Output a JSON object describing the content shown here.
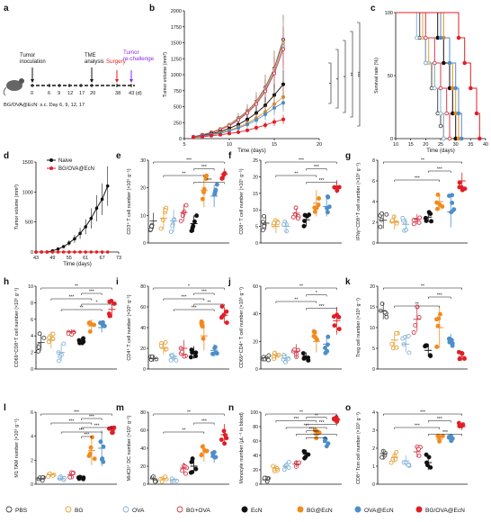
{
  "colors": {
    "PBS": "#4a4a4a",
    "BG": "#e8a33a",
    "OVA": "#86b4d8",
    "BG+OVA": "#d43a4a",
    "EcN": "#111111",
    "BG@EcN": "#f28a1e",
    "OVA@EcN": "#4d8ec9",
    "BG/OVA@EcN": "#e01f26",
    "Naive": "#111111",
    "surgery": "#e01f26",
    "rechallenge": "#8a2be2"
  },
  "legend": [
    {
      "name": "PBS",
      "fill": "open"
    },
    {
      "name": "BG",
      "fill": "open"
    },
    {
      "name": "OVA",
      "fill": "open"
    },
    {
      "name": "BG+OVA",
      "fill": "open"
    },
    {
      "name": "EcN",
      "fill": "solid"
    },
    {
      "name": "BG@EcN",
      "fill": "solid"
    },
    {
      "name": "OVA@EcN",
      "fill": "solid"
    },
    {
      "name": "BG/OVA@EcN",
      "fill": "solid"
    }
  ],
  "panel_a": {
    "letter": "a",
    "tumor_inoculation": "Tumor\ninoculation",
    "tme_analysis": "TME\nanalysis",
    "surgery": "Surgery",
    "rechallenge": "Tumor\nre-challenge",
    "ticks": [
      "0",
      "6",
      "9",
      "12",
      "17",
      "20",
      "38",
      "43 (d)"
    ],
    "dosing": "BG/OVA@EcN: s.c.  Day  6, 9, 12, 17"
  },
  "chart_data": [
    {
      "panel": "b",
      "type": "line",
      "xlabel": "Time (days)",
      "ylabel": "Tumor volume (mm³)",
      "xlim": [
        5,
        20
      ],
      "ylim": [
        0,
        2000
      ],
      "xticks": [
        5,
        10,
        15,
        20
      ],
      "yticks": [
        0,
        250,
        500,
        750,
        1000,
        1250,
        1500,
        1750,
        2000
      ],
      "x": [
        6,
        7,
        8,
        9,
        10,
        11,
        12,
        13,
        14,
        15,
        16
      ],
      "series": [
        {
          "group": "PBS",
          "values": [
            30,
            60,
            100,
            150,
            220,
            320,
            430,
            580,
            800,
            1100,
            1550
          ]
        },
        {
          "group": "BG",
          "values": [
            30,
            60,
            100,
            150,
            220,
            310,
            420,
            570,
            780,
            1080,
            1500
          ]
        },
        {
          "group": "OVA",
          "values": [
            30,
            55,
            95,
            140,
            210,
            300,
            410,
            550,
            760,
            1050,
            1450
          ]
        },
        {
          "group": "BG+OVA",
          "values": [
            30,
            55,
            90,
            140,
            200,
            290,
            400,
            540,
            740,
            1020,
            1400
          ]
        },
        {
          "group": "EcN",
          "values": [
            25,
            45,
            75,
            110,
            160,
            220,
            300,
            400,
            520,
            680,
            850
          ]
        },
        {
          "group": "BG@EcN",
          "values": [
            25,
            40,
            65,
            95,
            130,
            180,
            240,
            320,
            420,
            540,
            650
          ]
        },
        {
          "group": "OVA@EcN",
          "values": [
            25,
            40,
            60,
            85,
            120,
            165,
            220,
            290,
            380,
            480,
            560
          ]
        },
        {
          "group": "BG/OVA@EcN",
          "values": [
            20,
            30,
            45,
            60,
            80,
            100,
            130,
            170,
            210,
            260,
            300
          ]
        }
      ],
      "significance": [
        "*",
        "*",
        "*",
        "**",
        "***"
      ]
    },
    {
      "panel": "c",
      "type": "line",
      "xlabel": "Time (days)",
      "ylabel": "Survival rate (%)",
      "xlim": [
        10,
        40
      ],
      "ylim": [
        0,
        100
      ],
      "xticks": [
        10,
        15,
        20,
        25,
        30,
        35,
        40
      ],
      "yticks": [
        0,
        50,
        100
      ],
      "series": [
        {
          "group": "PBS",
          "x": [
            10,
            18,
            20,
            22,
            24,
            25,
            26
          ],
          "values": [
            100,
            80,
            60,
            40,
            20,
            10,
            0
          ]
        },
        {
          "group": "BG",
          "x": [
            10,
            19,
            21,
            23,
            25,
            26
          ],
          "values": [
            100,
            80,
            60,
            40,
            20,
            0
          ]
        },
        {
          "group": "OVA",
          "x": [
            10,
            17,
            20,
            23,
            25,
            26
          ],
          "values": [
            100,
            80,
            60,
            40,
            20,
            0
          ]
        },
        {
          "group": "BG+OVA",
          "x": [
            10,
            20,
            23,
            25,
            27,
            28
          ],
          "values": [
            100,
            80,
            60,
            40,
            20,
            0
          ]
        },
        {
          "group": "EcN",
          "x": [
            10,
            24,
            26,
            28,
            29,
            30
          ],
          "values": [
            100,
            80,
            60,
            40,
            20,
            0
          ]
        },
        {
          "group": "BG@EcN",
          "x": [
            10,
            26,
            28,
            29,
            30,
            31
          ],
          "values": [
            100,
            80,
            60,
            40,
            20,
            0
          ]
        },
        {
          "group": "OVA@EcN",
          "x": [
            10,
            25,
            28,
            30,
            31,
            32
          ],
          "values": [
            100,
            80,
            60,
            40,
            20,
            0
          ]
        },
        {
          "group": "BG/OVA@EcN",
          "x": [
            10,
            31,
            33,
            35,
            37,
            38
          ],
          "values": [
            100,
            80,
            60,
            40,
            20,
            0
          ]
        }
      ]
    },
    {
      "panel": "d",
      "type": "line",
      "xlabel": "Time (days)",
      "ylabel": "Tumor volume (mm³)",
      "xlim": [
        43,
        73
      ],
      "ylim": [
        0,
        1500
      ],
      "xticks": [
        43,
        49,
        55,
        61,
        67,
        73
      ],
      "yticks": [
        0,
        500,
        1000,
        1500
      ],
      "legend_position": "top-left",
      "series": [
        {
          "name": "Naive",
          "x": [
            43,
            45,
            47,
            49,
            51,
            53,
            55,
            57,
            59,
            61,
            63,
            65,
            67,
            69
          ],
          "values": [
            0,
            0,
            0,
            20,
            50,
            90,
            150,
            220,
            310,
            420,
            560,
            730,
            880,
            1100
          ]
        },
        {
          "name": "BG/OVA@EcN",
          "x": [
            43,
            45,
            47,
            49,
            51,
            53,
            55,
            57,
            59,
            61,
            63,
            65,
            67,
            69
          ],
          "values": [
            0,
            0,
            0,
            0,
            0,
            0,
            0,
            0,
            0,
            0,
            0,
            0,
            0,
            0
          ]
        }
      ]
    },
    {
      "panel": "e",
      "type": "scatter",
      "ylabel": "CD3⁺ T cell number (×10⁵ g⁻¹)",
      "ylim": [
        0,
        30
      ],
      "yticks": [
        0,
        10,
        20,
        30
      ],
      "groups": [
        "PBS",
        "BG",
        "OVA",
        "BG+OVA",
        "EcN",
        "BG@EcN",
        "OVA@EcN",
        "BG/OVA@EcN"
      ],
      "means": [
        8,
        9,
        8,
        11,
        7,
        19,
        17,
        25
      ],
      "sd": [
        3,
        4,
        4,
        3,
        3,
        6,
        4,
        2
      ],
      "significance": [
        "***",
        "***",
        "**",
        "***"
      ]
    },
    {
      "panel": "f",
      "type": "scatter",
      "ylabel": "CD8⁺ T cell number (×10⁵ g⁻¹)",
      "ylim": [
        0,
        25
      ],
      "yticks": [
        0,
        5,
        10,
        15,
        20,
        25
      ],
      "groups": [
        "PBS",
        "BG",
        "OVA",
        "BG+OVA",
        "EcN",
        "BG@EcN",
        "OVA@EcN",
        "BG/OVA@EcN"
      ],
      "means": [
        6,
        5,
        5,
        9,
        7,
        12,
        11,
        17
      ],
      "sd": [
        2,
        2,
        2,
        1.5,
        2,
        4,
        3,
        2
      ],
      "significance": [
        "***",
        "***",
        "**",
        "***"
      ]
    },
    {
      "panel": "g",
      "type": "scatter",
      "ylabel": "IFNγ⁺CD8⁺T cell number (×10⁵ g⁻¹)",
      "ylim": [
        0,
        8
      ],
      "yticks": [
        0,
        2,
        4,
        6,
        8
      ],
      "groups": [
        "PBS",
        "BG",
        "OVA",
        "BG+OVA",
        "EcN",
        "BG@EcN",
        "OVA@EcN",
        "BG/OVA@EcN"
      ],
      "means": [
        2.2,
        2,
        1.8,
        2.3,
        2.5,
        4,
        3,
        6
      ],
      "sd": [
        0.8,
        0.7,
        0.6,
        0.5,
        0.5,
        0.8,
        1.5,
        0.8
      ],
      "significance": [
        "**",
        "***",
        "***"
      ]
    },
    {
      "panel": "h",
      "type": "scatter",
      "ylabel": "CD69⁺CD8⁺T cell number (×10⁵ g⁻¹)",
      "ylim": [
        0,
        10
      ],
      "yticks": [
        0,
        2,
        4,
        6,
        8,
        10
      ],
      "groups": [
        "PBS",
        "BG",
        "OVA",
        "BG+OVA",
        "EcN",
        "BG@EcN",
        "OVA@EcN",
        "BG/OVA@EcN"
      ],
      "means": [
        3.2,
        3.5,
        2,
        4.5,
        3.4,
        5.2,
        5,
        7.2
      ],
      "sd": [
        1,
        1,
        1,
        0.3,
        0.4,
        0.8,
        0.6,
        1
      ],
      "significance": [
        "**",
        "***",
        "***",
        "*",
        "**"
      ]
    },
    {
      "panel": "i",
      "type": "scatter",
      "ylabel": "CD4⁺ T cell number (×10⁵ g⁻¹)",
      "ylim": [
        0,
        80
      ],
      "yticks": [
        0,
        20,
        40,
        60,
        80
      ],
      "groups": [
        "PBS",
        "BG",
        "OVA",
        "BG+OVA",
        "EcN",
        "BG@EcN",
        "OVA@EcN",
        "BG/OVA@EcN"
      ],
      "means": [
        10,
        20,
        12,
        20,
        16,
        32,
        18,
        52
      ],
      "sd": [
        3,
        6,
        4,
        8,
        6,
        14,
        6,
        8
      ],
      "significance": [
        "*",
        "***",
        "***",
        "**",
        "***"
      ]
    },
    {
      "panel": "j",
      "type": "scatter",
      "ylabel": "CD69⁺CD4⁺ T cell number (×10⁵ g⁻¹)",
      "ylim": [
        0,
        60
      ],
      "yticks": [
        0,
        20,
        40,
        60
      ],
      "groups": [
        "PBS",
        "BG",
        "OVA",
        "BG+OVA",
        "EcN",
        "BG@EcN",
        "OVA@EcN",
        "BG/OVA@EcN"
      ],
      "means": [
        8,
        10,
        8,
        13,
        9,
        20,
        18,
        35
      ],
      "sd": [
        2,
        3,
        3,
        5,
        3,
        8,
        6,
        10
      ],
      "significance": [
        "**",
        "*",
        "**",
        "***"
      ]
    },
    {
      "panel": "k",
      "type": "scatter",
      "ylabel": "Treg cell number (×10⁵ g⁻¹)",
      "ylim": [
        0,
        20
      ],
      "yticks": [
        0,
        5,
        10,
        15,
        20
      ],
      "groups": [
        "PBS",
        "BG",
        "OVA",
        "BG+OVA",
        "EcN",
        "BG@EcN",
        "OVA@EcN",
        "BG/OVA@EcN"
      ],
      "means": [
        14,
        7,
        6,
        12,
        4.5,
        10,
        7,
        3
      ],
      "sd": [
        2,
        2,
        2,
        3,
        1.5,
        5,
        1.5,
        1
      ],
      "significance": [
        "**",
        "***",
        "**"
      ]
    },
    {
      "panel": "l",
      "type": "scatter",
      "ylabel": "M1 TAM number (×10⁵ g⁻¹)",
      "ylim": [
        0,
        6
      ],
      "yticks": [
        0,
        2,
        4,
        6
      ],
      "groups": [
        "PBS",
        "BG",
        "OVA",
        "BG+OVA",
        "EcN",
        "BG@EcN",
        "OVA@EcN",
        "BG/OVA@EcN"
      ],
      "means": [
        0.5,
        0.8,
        0.5,
        0.8,
        0.5,
        2.8,
        3,
        4.5
      ],
      "sd": [
        0.2,
        0.2,
        0.2,
        0.2,
        0.1,
        1.2,
        1.5,
        0.3
      ],
      "significance": [
        "***",
        "***",
        "***",
        "***",
        "***",
        "***"
      ]
    },
    {
      "panel": "m",
      "type": "scatter",
      "ylabel": "MHCII⁺ DC number (×10⁵ g⁻¹)",
      "ylim": [
        0,
        80
      ],
      "yticks": [
        0,
        20,
        40,
        60,
        80
      ],
      "groups": [
        "PBS",
        "BG",
        "OVA",
        "BG+OVA",
        "EcN",
        "BG@EcN",
        "OVA@EcN",
        "BG/OVA@EcN"
      ],
      "means": [
        6,
        6,
        5,
        18,
        20,
        35,
        30,
        55
      ],
      "sd": [
        3,
        3,
        2,
        6,
        8,
        10,
        6,
        12
      ],
      "significance": [
        "**",
        "***",
        "**"
      ]
    },
    {
      "panel": "n",
      "type": "scatter",
      "ylabel": "Monocyte number (μL⁻¹ in blood)",
      "ylim": [
        0,
        100
      ],
      "yticks": [
        0,
        20,
        40,
        60,
        80,
        100
      ],
      "groups": [
        "PBS",
        "BG",
        "OVA",
        "BG+OVA",
        "EcN",
        "BG@EcN",
        "OVA@EcN",
        "BG/OVA@EcN"
      ],
      "means": [
        6,
        22,
        25,
        28,
        42,
        70,
        58,
        90
      ],
      "sd": [
        3,
        5,
        6,
        4,
        6,
        6,
        5,
        4
      ],
      "significance": [
        "**",
        "**",
        "***",
        "***",
        "***",
        "***",
        "***",
        "***"
      ]
    },
    {
      "panel": "o",
      "type": "scatter",
      "ylabel": "CD8⁺ Tcm cell number (×10⁵ g⁻¹)",
      "ylim": [
        0,
        4
      ],
      "yticks": [
        0,
        1,
        2,
        3,
        4
      ],
      "groups": [
        "PBS",
        "BG",
        "OVA",
        "BG+OVA",
        "EcN",
        "BG@EcN",
        "OVA@EcN",
        "BG/OVA@EcN"
      ],
      "means": [
        1.7,
        1.5,
        1.3,
        1.8,
        1.2,
        2.5,
        2.6,
        3.2
      ],
      "sd": [
        0.2,
        0.3,
        0.3,
        0.3,
        0.4,
        0.2,
        0.2,
        0.2
      ],
      "significance": [
        "***",
        "***",
        "***",
        "***"
      ]
    }
  ]
}
